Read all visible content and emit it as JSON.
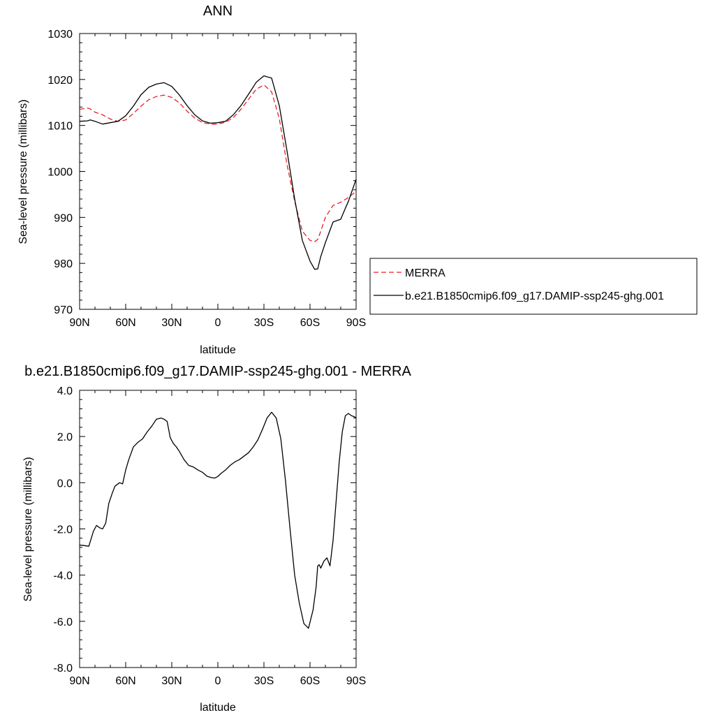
{
  "chart_data": [
    {
      "type": "line",
      "title": "ANN",
      "xlabel": "latitude",
      "ylabel": "Sea-level pressure (millibars)",
      "xlim": [
        90,
        -90
      ],
      "ylim": [
        970,
        1030
      ],
      "xticks": [
        90,
        60,
        30,
        0,
        -30,
        -60,
        -90
      ],
      "xtick_labels": [
        "90N",
        "60N",
        "30N",
        "0",
        "30S",
        "60S",
        "90S"
      ],
      "yticks": [
        970,
        980,
        990,
        1000,
        1010,
        1020,
        1030
      ],
      "ytick_labels": [
        "970",
        "980",
        "990",
        "1000",
        "1010",
        "1020",
        "1030"
      ],
      "legend_position": "right",
      "series": [
        {
          "name": "MERRA",
          "color": "#e8202a",
          "dash": "dashed",
          "x": [
            90,
            85,
            83,
            80,
            75,
            70,
            65,
            60,
            55,
            50,
            45,
            40,
            35,
            30,
            25,
            20,
            15,
            10,
            5,
            0,
            -5,
            -10,
            -15,
            -20,
            -25,
            -30,
            -35,
            -40,
            -45,
            -50,
            -55,
            -60,
            -63,
            -65,
            -67,
            -70,
            -75,
            -80,
            -85,
            -90
          ],
          "y": [
            1013.5,
            1013.8,
            1013.6,
            1012.9,
            1012.3,
            1011.4,
            1010.9,
            1011.2,
            1012.6,
            1014.2,
            1015.6,
            1016.3,
            1016.6,
            1016.1,
            1014.9,
            1013.1,
            1011.6,
            1010.6,
            1010.3,
            1010.3,
            1010.7,
            1011.7,
            1013.5,
            1015.7,
            1017.9,
            1018.8,
            1017.3,
            1011.5,
            1001.5,
            993.5,
            987.0,
            985.0,
            984.7,
            985.2,
            987.0,
            990.0,
            992.6,
            993.3,
            994.3,
            995.7
          ]
        },
        {
          "name": "b.e21.B1850cmip6.f09_g17.DAMIP-ssp245-ghg.001",
          "color": "#000000",
          "dash": "solid",
          "x": [
            90,
            85,
            83,
            80,
            75,
            70,
            65,
            60,
            55,
            50,
            45,
            40,
            35,
            30,
            25,
            20,
            15,
            10,
            5,
            0,
            -5,
            -10,
            -15,
            -20,
            -25,
            -30,
            -35,
            -40,
            -45,
            -50,
            -55,
            -60,
            -63,
            -65,
            -67,
            -70,
            -75,
            -80,
            -83,
            -85,
            -90
          ],
          "y": [
            1010.9,
            1011.0,
            1011.2,
            1010.9,
            1010.3,
            1010.6,
            1010.9,
            1012.1,
            1014.2,
            1016.7,
            1018.3,
            1019.0,
            1019.3,
            1018.5,
            1016.6,
            1014.3,
            1012.3,
            1011.0,
            1010.5,
            1010.6,
            1010.9,
            1012.3,
            1014.3,
            1016.8,
            1019.4,
            1020.8,
            1020.3,
            1014.3,
            1004.5,
            994.0,
            985.0,
            980.5,
            978.7,
            978.8,
            981.5,
            984.5,
            989.0,
            989.6,
            992.0,
            993.5,
            998.3
          ]
        }
      ]
    },
    {
      "type": "line",
      "title": "b.e21.B1850cmip6.f09_g17.DAMIP-ssp245-ghg.001 - MERRA",
      "xlabel": "latitude",
      "ylabel": "Sea-level pressure (millibars)",
      "xlim": [
        90,
        -90
      ],
      "ylim": [
        -8.0,
        4.0
      ],
      "xticks": [
        90,
        60,
        30,
        0,
        -30,
        -60,
        -90
      ],
      "xtick_labels": [
        "90N",
        "60N",
        "30N",
        "0",
        "30S",
        "60S",
        "90S"
      ],
      "yticks": [
        -8,
        -6,
        -4,
        -2,
        0,
        2,
        4
      ],
      "ytick_labels": [
        "-8.0",
        "-6.0",
        "-4.0",
        "-2.0",
        "0.0",
        "2.0",
        "4.0"
      ],
      "series": [
        {
          "color": "#000000",
          "dash": "solid",
          "x": [
            90,
            87,
            84,
            81,
            79,
            77,
            75,
            73,
            71,
            69,
            67,
            64,
            62,
            60,
            58,
            55,
            52,
            49,
            46,
            43,
            40,
            37,
            35,
            33,
            31,
            29,
            27,
            25,
            22,
            19,
            16,
            13,
            10,
            7,
            4,
            2,
            0,
            -2,
            -5,
            -8,
            -11,
            -14,
            -17,
            -20,
            -23,
            -26,
            -29,
            -32,
            -35,
            -38,
            -41,
            -44,
            -47,
            -50,
            -53,
            -56,
            -59,
            -62,
            -64,
            -65,
            -66,
            -67,
            -69,
            -71,
            -73,
            -75,
            -77,
            -79,
            -81,
            -83,
            -85,
            -87,
            -89,
            -90
          ],
          "y": [
            -2.7,
            -2.72,
            -2.75,
            -2.1,
            -1.85,
            -1.95,
            -2.0,
            -1.75,
            -0.9,
            -0.5,
            -0.15,
            0.0,
            -0.05,
            0.55,
            1.0,
            1.55,
            1.75,
            1.9,
            2.2,
            2.45,
            2.75,
            2.8,
            2.75,
            2.65,
            1.95,
            1.7,
            1.55,
            1.35,
            1.0,
            0.75,
            0.68,
            0.55,
            0.45,
            0.28,
            0.22,
            0.2,
            0.27,
            0.4,
            0.55,
            0.75,
            0.9,
            1.0,
            1.15,
            1.3,
            1.55,
            1.85,
            2.3,
            2.8,
            3.05,
            2.8,
            1.9,
            0.1,
            -2.0,
            -4.0,
            -5.2,
            -6.1,
            -6.3,
            -5.5,
            -4.5,
            -3.6,
            -3.55,
            -3.7,
            -3.4,
            -3.25,
            -3.6,
            -2.5,
            -0.8,
            0.9,
            2.2,
            2.9,
            3.0,
            2.9,
            2.85,
            2.8
          ]
        }
      ]
    }
  ]
}
